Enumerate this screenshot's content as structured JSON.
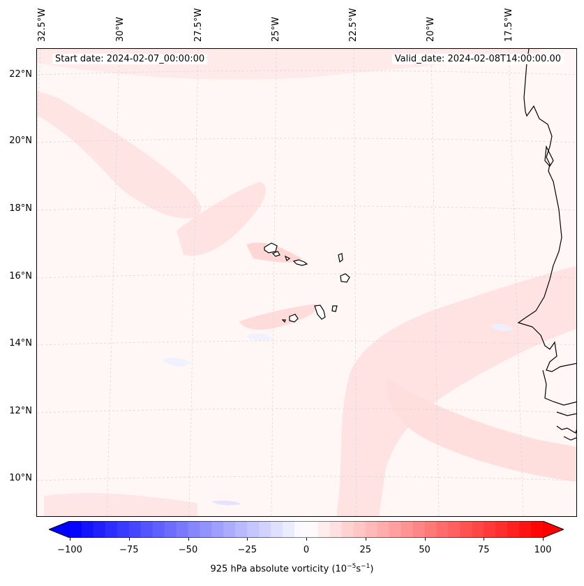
{
  "map": {
    "start_date": "Start date: 2024-02-07_00:00:00",
    "valid_date": "Valid_date: 2024-02-08T14:00:00.00",
    "longitude_labels": [
      "32.5°W",
      "30°W",
      "27.5°W",
      "25°W",
      "22.5°W",
      "20°W",
      "17.5°W"
    ],
    "latitude_labels": [
      "22°N",
      "20°N",
      "18°N",
      "16°N",
      "14°N",
      "12°N",
      "10°N"
    ],
    "variable": "925 hPa absolute vorticity",
    "units_base": "10",
    "units_exp1": "−5",
    "units_mid": "s",
    "units_exp2": "−1"
  },
  "colorbar": {
    "min": -100,
    "max": 100,
    "step": 5,
    "tick_labels": [
      "−100",
      "−75",
      "−50",
      "−25",
      "0",
      "25",
      "50",
      "75",
      "100"
    ],
    "extend": "both",
    "colormap": "bwr",
    "low_color": "#0000ff",
    "mid_color": "#ffffff",
    "high_color": "#ff0000"
  }
}
